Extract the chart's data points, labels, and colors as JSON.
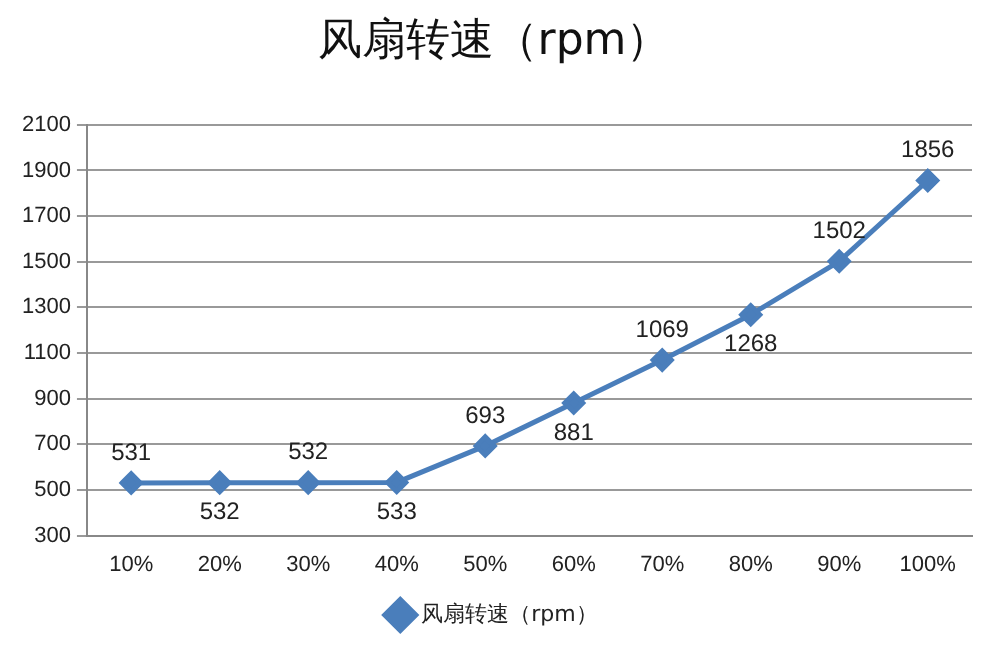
{
  "chart_data": {
    "type": "line",
    "title": "风扇转速（rpm）",
    "categories": [
      "10%",
      "20%",
      "30%",
      "40%",
      "50%",
      "60%",
      "70%",
      "80%",
      "90%",
      "100%"
    ],
    "series": [
      {
        "name": "风扇转速（rpm）",
        "color": "#4a7ebb",
        "values": [
          531,
          532,
          532,
          533,
          693,
          881,
          1069,
          1268,
          1502,
          1856
        ]
      }
    ],
    "ylim": [
      300,
      2100
    ],
    "yticks": [
      300,
      500,
      700,
      900,
      1100,
      1300,
      1500,
      1700,
      1900,
      2100
    ],
    "grid": "y",
    "legend": "bottom",
    "marker": "diamond",
    "line_style": "solid",
    "data_labels": true
  }
}
